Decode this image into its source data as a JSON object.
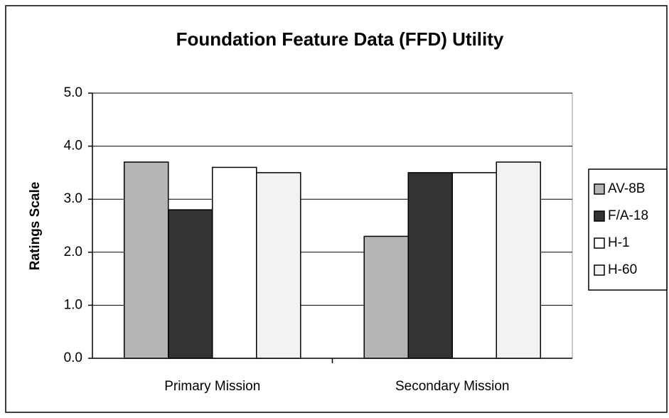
{
  "chart_data": {
    "type": "bar",
    "title": "Foundation Feature Data (FFD) Utility",
    "y_label": "Ratings Scale",
    "categories": [
      "Primary Mission",
      "Secondary Mission"
    ],
    "series": [
      {
        "name": "AV-8B",
        "color": "#b5b5b5",
        "values": [
          3.7,
          2.3
        ]
      },
      {
        "name": "F/A-18",
        "color": "#333333",
        "values": [
          2.8,
          3.5
        ]
      },
      {
        "name": "H-1",
        "color": "#ffffff",
        "values": [
          3.6,
          3.5
        ]
      },
      {
        "name": "H-60",
        "color": "#f2f2f2",
        "values": [
          3.5,
          3.7
        ]
      }
    ],
    "ylim": [
      0,
      5
    ],
    "yticks": [
      {
        "value": 0,
        "label": "0.0"
      },
      {
        "value": 1,
        "label": "1.0"
      },
      {
        "value": 2,
        "label": "2.0"
      },
      {
        "value": 3,
        "label": "3.0"
      },
      {
        "value": 4,
        "label": "4.0"
      },
      {
        "value": 5,
        "label": "5.0"
      }
    ],
    "grid": true,
    "legend": "right"
  }
}
